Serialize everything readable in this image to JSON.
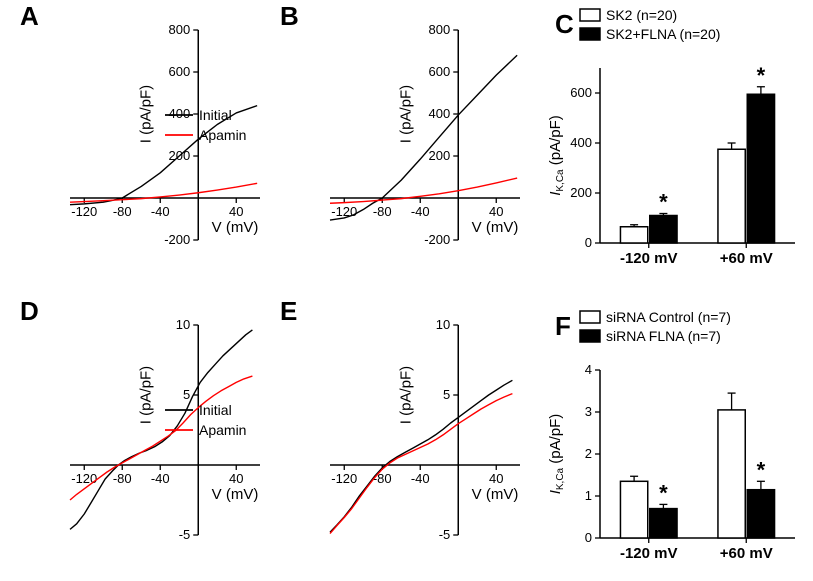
{
  "A": {
    "letter": "A",
    "ylabel": "I (pA/pF)",
    "xlabel": "V (mV)",
    "xlim": [
      -135,
      65
    ],
    "ylim": [
      -200,
      800
    ],
    "xticks": [
      -120,
      -80,
      -40,
      0,
      40
    ],
    "yticks": [
      -200,
      0,
      200,
      400,
      600,
      800
    ],
    "traces": {
      "initial": {
        "color": "#000000",
        "width": 1.4,
        "points": [
          [
            -135,
            -32
          ],
          [
            -120,
            -28
          ],
          [
            -100,
            -20
          ],
          [
            -90,
            -11
          ],
          [
            -80,
            0
          ],
          [
            -60,
            55
          ],
          [
            -40,
            120
          ],
          [
            -20,
            200
          ],
          [
            0,
            280
          ],
          [
            20,
            350
          ],
          [
            40,
            405
          ],
          [
            62,
            440
          ]
        ]
      },
      "apamin": {
        "color": "#ff0000",
        "width": 1.4,
        "points": [
          [
            -135,
            -20
          ],
          [
            -120,
            -17
          ],
          [
            -100,
            -13
          ],
          [
            -80,
            -8
          ],
          [
            -60,
            -3
          ],
          [
            -40,
            5
          ],
          [
            -20,
            14
          ],
          [
            0,
            25
          ],
          [
            20,
            38
          ],
          [
            40,
            52
          ],
          [
            62,
            70
          ]
        ]
      }
    },
    "legend": {
      "label1": "Initial",
      "label2": "Apamin"
    }
  },
  "B": {
    "letter": "B",
    "ylabel": "I (pA/pF)",
    "xlabel": "V (mV)",
    "xlim": [
      -135,
      65
    ],
    "ylim": [
      -200,
      800
    ],
    "xticks": [
      -120,
      -80,
      -40,
      0,
      40
    ],
    "yticks": [
      -200,
      0,
      200,
      400,
      600,
      800
    ],
    "traces": {
      "initial": {
        "color": "#000000",
        "width": 1.4,
        "points": [
          [
            -135,
            -105
          ],
          [
            -120,
            -95
          ],
          [
            -110,
            -80
          ],
          [
            -100,
            -55
          ],
          [
            -90,
            -25
          ],
          [
            -80,
            0
          ],
          [
            -60,
            85
          ],
          [
            -40,
            185
          ],
          [
            -20,
            290
          ],
          [
            0,
            395
          ],
          [
            20,
            490
          ],
          [
            40,
            585
          ],
          [
            62,
            680
          ]
        ]
      },
      "apamin": {
        "color": "#ff0000",
        "width": 1.4,
        "points": [
          [
            -135,
            -25
          ],
          [
            -120,
            -22
          ],
          [
            -100,
            -17
          ],
          [
            -80,
            -10
          ],
          [
            -60,
            -3
          ],
          [
            -40,
            8
          ],
          [
            -20,
            20
          ],
          [
            0,
            35
          ],
          [
            20,
            52
          ],
          [
            40,
            72
          ],
          [
            62,
            95
          ]
        ]
      }
    }
  },
  "C": {
    "letter": "C",
    "ylabel_it": "I",
    "ylabel_sub": "K,Ca",
    "ylabel_rest": " (pA/pF)",
    "xcats": [
      "-120 mV",
      "+60 mV"
    ],
    "ylim": [
      0,
      700
    ],
    "yticks": [
      0,
      200,
      400,
      600
    ],
    "series1": {
      "label": "SK2 (n=20)",
      "color": "#ffffff",
      "values": [
        65,
        375
      ],
      "err": [
        8,
        25
      ]
    },
    "series2": {
      "label": "SK2+FLNA (n=20)",
      "color": "#000000",
      "values": [
        110,
        595
      ],
      "err": [
        8,
        30
      ]
    },
    "stars": [
      true,
      true
    ]
  },
  "D": {
    "letter": "D",
    "ylabel": "I (pA/pF)",
    "xlabel": "V (mV)",
    "xlim": [
      -135,
      65
    ],
    "ylim": [
      -5,
      10
    ],
    "xticks": [
      -120,
      -80,
      -40,
      0,
      40
    ],
    "yticks": [
      -5,
      0,
      5,
      10
    ],
    "traces": {
      "initial": {
        "color": "#000000",
        "width": 1.4,
        "points": [
          [
            -135,
            -4.6
          ],
          [
            -128,
            -4.2
          ],
          [
            -120,
            -3.5
          ],
          [
            -112,
            -2.6
          ],
          [
            -105,
            -1.8
          ],
          [
            -98,
            -1.0
          ],
          [
            -90,
            -0.4
          ],
          [
            -84,
            0.0
          ],
          [
            -78,
            0.3
          ],
          [
            -70,
            0.6
          ],
          [
            -62,
            0.85
          ],
          [
            -54,
            1.05
          ],
          [
            -46,
            1.3
          ],
          [
            -38,
            1.65
          ],
          [
            -30,
            2.1
          ],
          [
            -22,
            2.8
          ],
          [
            -14,
            3.7
          ],
          [
            -6,
            4.9
          ],
          [
            2,
            5.9
          ],
          [
            10,
            6.6
          ],
          [
            18,
            7.2
          ],
          [
            26,
            7.8
          ],
          [
            34,
            8.3
          ],
          [
            42,
            8.8
          ],
          [
            50,
            9.3
          ],
          [
            57,
            9.65
          ]
        ]
      },
      "apamin": {
        "color": "#ff0000",
        "width": 1.4,
        "points": [
          [
            -135,
            -2.5
          ],
          [
            -128,
            -2.1
          ],
          [
            -120,
            -1.7
          ],
          [
            -112,
            -1.3
          ],
          [
            -104,
            -0.9
          ],
          [
            -96,
            -0.5
          ],
          [
            -88,
            -0.15
          ],
          [
            -80,
            0.15
          ],
          [
            -72,
            0.45
          ],
          [
            -64,
            0.75
          ],
          [
            -56,
            1.05
          ],
          [
            -48,
            1.35
          ],
          [
            -40,
            1.7
          ],
          [
            -32,
            2.05
          ],
          [
            -24,
            2.45
          ],
          [
            -16,
            3.0
          ],
          [
            -8,
            3.6
          ],
          [
            0,
            4.1
          ],
          [
            8,
            4.55
          ],
          [
            16,
            4.95
          ],
          [
            24,
            5.3
          ],
          [
            32,
            5.6
          ],
          [
            40,
            5.9
          ],
          [
            48,
            6.15
          ],
          [
            57,
            6.35
          ]
        ]
      }
    },
    "legend": {
      "label1": "Initial",
      "label2": "Apamin"
    }
  },
  "E": {
    "letter": "E",
    "ylabel": "I (pA/pF)",
    "xlabel": "V (mV)",
    "xlim": [
      -135,
      65
    ],
    "ylim": [
      -5,
      10
    ],
    "xticks": [
      -120,
      -80,
      -40,
      0,
      40
    ],
    "yticks": [
      -5,
      0,
      5,
      10
    ],
    "traces": {
      "initial": {
        "color": "#000000",
        "width": 1.4,
        "points": [
          [
            -135,
            -4.8
          ],
          [
            -128,
            -4.3
          ],
          [
            -120,
            -3.7
          ],
          [
            -112,
            -3.0
          ],
          [
            -104,
            -2.2
          ],
          [
            -96,
            -1.5
          ],
          [
            -88,
            -0.8
          ],
          [
            -80,
            -0.2
          ],
          [
            -72,
            0.25
          ],
          [
            -64,
            0.6
          ],
          [
            -56,
            0.9
          ],
          [
            -48,
            1.2
          ],
          [
            -40,
            1.5
          ],
          [
            -32,
            1.8
          ],
          [
            -24,
            2.15
          ],
          [
            -16,
            2.55
          ],
          [
            -8,
            3.0
          ],
          [
            0,
            3.4
          ],
          [
            8,
            3.8
          ],
          [
            16,
            4.2
          ],
          [
            24,
            4.6
          ],
          [
            32,
            5.0
          ],
          [
            40,
            5.35
          ],
          [
            48,
            5.7
          ],
          [
            57,
            6.05
          ]
        ]
      },
      "apamin": {
        "color": "#ff0000",
        "width": 1.4,
        "points": [
          [
            -135,
            -4.9
          ],
          [
            -128,
            -4.35
          ],
          [
            -120,
            -3.75
          ],
          [
            -112,
            -3.1
          ],
          [
            -104,
            -2.35
          ],
          [
            -96,
            -1.6
          ],
          [
            -88,
            -0.9
          ],
          [
            -80,
            -0.3
          ],
          [
            -72,
            0.15
          ],
          [
            -64,
            0.5
          ],
          [
            -56,
            0.75
          ],
          [
            -48,
            1.0
          ],
          [
            -40,
            1.25
          ],
          [
            -32,
            1.5
          ],
          [
            -24,
            1.8
          ],
          [
            -16,
            2.15
          ],
          [
            -8,
            2.55
          ],
          [
            0,
            2.95
          ],
          [
            8,
            3.3
          ],
          [
            16,
            3.65
          ],
          [
            24,
            4.0
          ],
          [
            32,
            4.3
          ],
          [
            40,
            4.6
          ],
          [
            48,
            4.85
          ],
          [
            57,
            5.1
          ]
        ]
      }
    }
  },
  "F": {
    "letter": "F",
    "ylabel_it": "I",
    "ylabel_sub": "K,Ca",
    "ylabel_rest": " (pA/pF)",
    "xcats": [
      "-120 mV",
      "+60 mV"
    ],
    "ylim": [
      0,
      4
    ],
    "yticks": [
      0,
      1,
      2,
      3,
      4
    ],
    "series1": {
      "label": "siRNA Control (n=7)",
      "color": "#ffffff",
      "values": [
        1.35,
        3.05
      ],
      "err": [
        0.12,
        0.4
      ]
    },
    "series2": {
      "label": "siRNA FLNA (n=7)",
      "color": "#000000",
      "values": [
        0.7,
        1.15
      ],
      "err": [
        0.1,
        0.2
      ]
    },
    "stars": [
      true,
      true
    ]
  }
}
